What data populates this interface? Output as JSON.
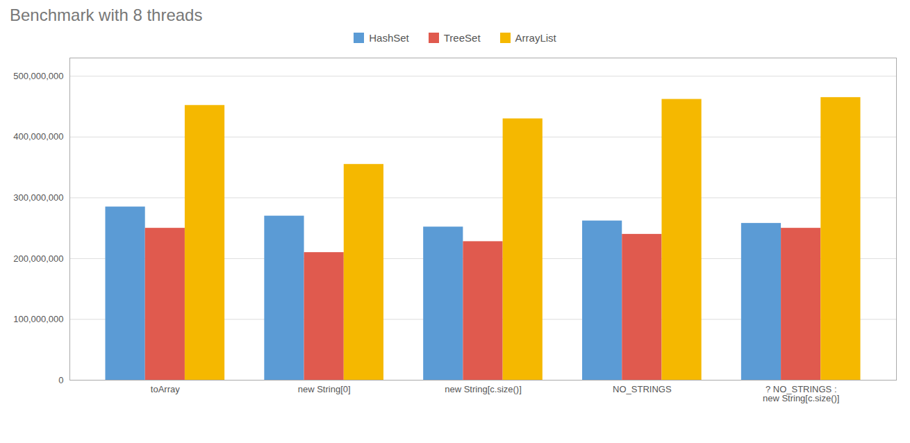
{
  "chart_data": {
    "type": "bar",
    "title": "Benchmark with 8 threads",
    "categories": [
      "toArray",
      "new String[0]",
      "new String[c.size()]",
      "NO_STRINGS",
      "? NO_STRINGS :\nnew String[c.size()]"
    ],
    "series": [
      {
        "name": "HashSet",
        "color": "#5b9bd5",
        "values": [
          285000000,
          270000000,
          252000000,
          262000000,
          258000000
        ]
      },
      {
        "name": "TreeSet",
        "color": "#e05a4e",
        "values": [
          250000000,
          210000000,
          228000000,
          240000000,
          250000000
        ]
      },
      {
        "name": "ArrayList",
        "color": "#f5b800",
        "values": [
          452000000,
          355000000,
          430000000,
          462000000,
          465000000
        ]
      }
    ],
    "ylim": [
      0,
      530000000
    ],
    "yticks": [
      0,
      {
        "value": 100000000,
        "label": "100,000,000"
      },
      {
        "value": 200000000,
        "label": "200,000,000"
      },
      {
        "value": 300000000,
        "label": "300,000,000"
      },
      {
        "value": 400000000,
        "label": "400,000,000"
      },
      {
        "value": 500000000,
        "label": "500,000,000"
      }
    ],
    "grid": true,
    "legend": "top"
  }
}
